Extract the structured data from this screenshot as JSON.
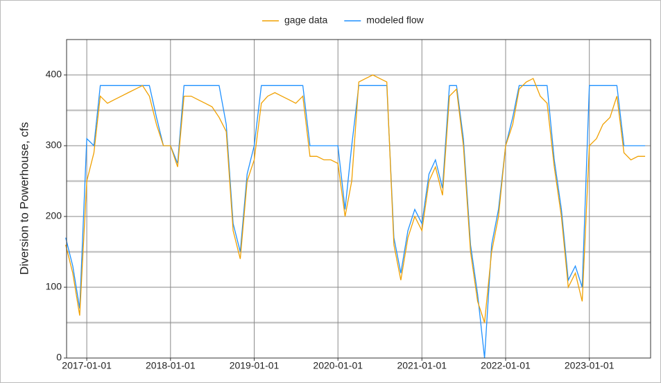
{
  "chart_data": {
    "type": "line",
    "y_label": "Diversion to Powerhouse, cfs",
    "legend": "top",
    "grid": true,
    "ylim": [
      0,
      450
    ],
    "yticks": [
      0,
      100,
      200,
      300,
      400
    ],
    "y_minor_ticks": [
      50,
      150,
      250,
      350
    ],
    "xlim": [
      "2016-10-05",
      "2023-09-25"
    ],
    "xticks": [
      "2017-01-01",
      "2018-01-01",
      "2019-01-01",
      "2020-01-01",
      "2021-01-01",
      "2022-01-01",
      "2023-01-01"
    ],
    "x": [
      "2016-10-01",
      "2016-11-01",
      "2016-12-01",
      "2017-01-01",
      "2017-02-01",
      "2017-03-01",
      "2017-04-01",
      "2017-05-01",
      "2017-06-01",
      "2017-07-01",
      "2017-08-01",
      "2017-09-01",
      "2017-10-01",
      "2017-11-01",
      "2017-12-01",
      "2018-01-01",
      "2018-02-01",
      "2018-03-01",
      "2018-04-01",
      "2018-05-01",
      "2018-06-01",
      "2018-07-01",
      "2018-08-01",
      "2018-09-01",
      "2018-10-01",
      "2018-11-01",
      "2018-12-01",
      "2019-01-01",
      "2019-02-01",
      "2019-03-01",
      "2019-04-01",
      "2019-05-01",
      "2019-06-01",
      "2019-07-01",
      "2019-08-01",
      "2019-09-01",
      "2019-10-01",
      "2019-11-01",
      "2019-12-01",
      "2020-01-01",
      "2020-02-01",
      "2020-03-01",
      "2020-04-01",
      "2020-05-01",
      "2020-06-01",
      "2020-07-01",
      "2020-08-01",
      "2020-09-01",
      "2020-10-01",
      "2020-11-01",
      "2020-12-01",
      "2021-01-01",
      "2021-02-01",
      "2021-03-01",
      "2021-04-01",
      "2021-05-01",
      "2021-06-01",
      "2021-07-01",
      "2021-08-01",
      "2021-09-01",
      "2021-10-01",
      "2021-11-01",
      "2021-12-01",
      "2022-01-01",
      "2022-02-01",
      "2022-03-01",
      "2022-04-01",
      "2022-05-01",
      "2022-06-01",
      "2022-07-01",
      "2022-08-01",
      "2022-09-01",
      "2022-10-01",
      "2022-11-01",
      "2022-12-01",
      "2023-01-01",
      "2023-02-01",
      "2023-03-01",
      "2023-04-01",
      "2023-05-01",
      "2023-06-01",
      "2023-07-01",
      "2023-08-01",
      "2023-09-01"
    ],
    "series": [
      {
        "name": "modeled flow",
        "color": "#1e90ff",
        "values": [
          170,
          130,
          70,
          310,
          300,
          385,
          385,
          385,
          385,
          385,
          385,
          385,
          385,
          340,
          300,
          300,
          275,
          385,
          385,
          385,
          385,
          385,
          385,
          330,
          190,
          150,
          260,
          300,
          385,
          385,
          385,
          385,
          385,
          385,
          385,
          300,
          300,
          300,
          300,
          300,
          210,
          300,
          385,
          385,
          385,
          385,
          385,
          170,
          120,
          180,
          210,
          190,
          260,
          280,
          240,
          385,
          385,
          310,
          160,
          90,
          0,
          160,
          210,
          300,
          340,
          385,
          385,
          385,
          385,
          385,
          280,
          210,
          110,
          130,
          100,
          385,
          385,
          385,
          385,
          385,
          300,
          300,
          300,
          300
        ]
      },
      {
        "name": "gage data",
        "color": "#f0a000",
        "values": [
          160,
          120,
          60,
          250,
          290,
          370,
          360,
          365,
          370,
          375,
          380,
          385,
          370,
          330,
          300,
          300,
          270,
          370,
          370,
          365,
          360,
          355,
          340,
          320,
          180,
          140,
          250,
          280,
          360,
          370,
          375,
          370,
          365,
          360,
          370,
          285,
          285,
          280,
          280,
          275,
          200,
          250,
          390,
          395,
          400,
          395,
          390,
          160,
          110,
          170,
          200,
          180,
          250,
          270,
          230,
          370,
          380,
          300,
          150,
          80,
          50,
          150,
          200,
          300,
          330,
          380,
          390,
          395,
          370,
          360,
          270,
          200,
          100,
          120,
          80,
          300,
          310,
          330,
          340,
          370,
          290,
          280,
          285,
          285
        ]
      }
    ]
  }
}
